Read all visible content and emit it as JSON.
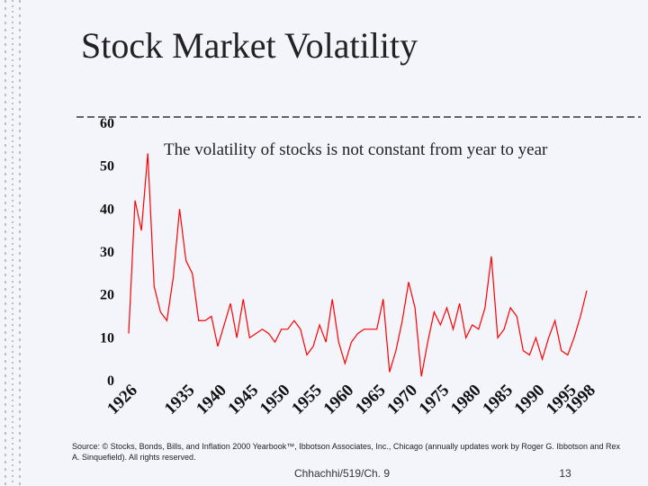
{
  "chart_data": {
    "type": "line",
    "title": "Stock Market Volatility",
    "annotation": "The volatility of stocks is not constant from year to year",
    "source": "Source: © Stocks, Bonds, Bills, and Inflation 2000 Yearbook™, Ibbotson Associates, Inc., Chicago (annually updates work by Roger G. Ibbotson and Rex A. Sinquefield). All rights reserved.",
    "categories": [
      "1926",
      null,
      null,
      null,
      null,
      null,
      null,
      null,
      null,
      "1935",
      null,
      null,
      null,
      null,
      "1940",
      null,
      null,
      null,
      null,
      "1945",
      null,
      null,
      null,
      null,
      "1950",
      null,
      null,
      null,
      null,
      "1955",
      null,
      null,
      null,
      null,
      "1960",
      null,
      null,
      null,
      null,
      "1965",
      null,
      null,
      null,
      null,
      "1970",
      null,
      null,
      null,
      null,
      "1975",
      null,
      null,
      null,
      null,
      "1980",
      null,
      null,
      null,
      null,
      "1985",
      null,
      null,
      null,
      null,
      "1990",
      null,
      null,
      null,
      null,
      "1995",
      null,
      null,
      "1998"
    ],
    "values": [
      11,
      42,
      35,
      53,
      22,
      16,
      14,
      24,
      40,
      28,
      25,
      14,
      14,
      15,
      8,
      13,
      18,
      10,
      19,
      10,
      11,
      12,
      11,
      9,
      12,
      12,
      14,
      12,
      6,
      8,
      13,
      9,
      19,
      9,
      4,
      9,
      11,
      12,
      12,
      12,
      19,
      2,
      7,
      14,
      23,
      17,
      1,
      9,
      16,
      13,
      17,
      12,
      18,
      10,
      13,
      12,
      17,
      29,
      10,
      12,
      17,
      15,
      7,
      6,
      10,
      5,
      10,
      14,
      7,
      6,
      10,
      15,
      21
    ],
    "color": "#ff0000",
    "ylim": [
      0,
      60
    ],
    "yticks": [
      0,
      10,
      20,
      30,
      40,
      50,
      60
    ]
  },
  "footer": {
    "course": "Chhachhi/519/Ch. 9",
    "page": "13"
  }
}
